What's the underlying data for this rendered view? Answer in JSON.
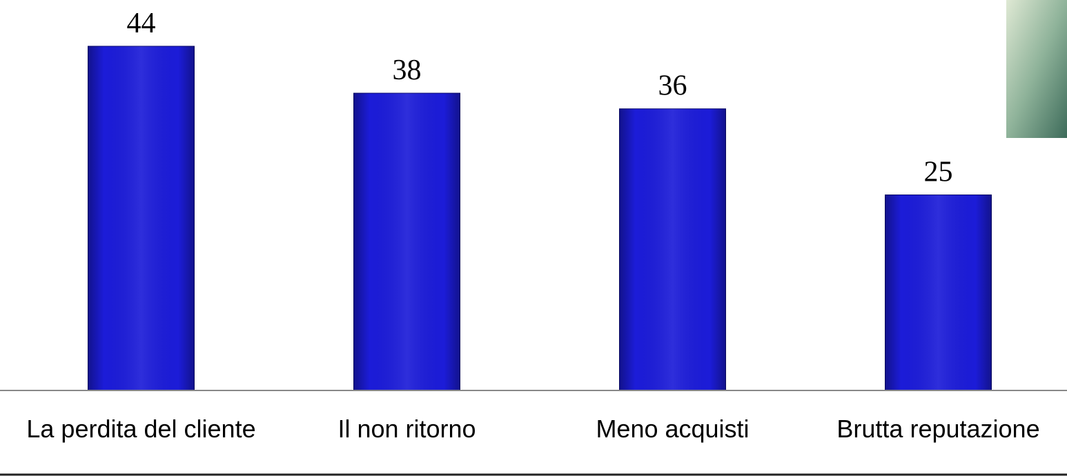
{
  "chart_data": {
    "type": "bar",
    "categories": [
      "La perdita del cliente",
      "Il non ritorno",
      "Meno acquisti",
      "Brutta reputazione"
    ],
    "values": [
      44,
      38,
      36,
      25
    ],
    "color": "#1c1cd8"
  }
}
